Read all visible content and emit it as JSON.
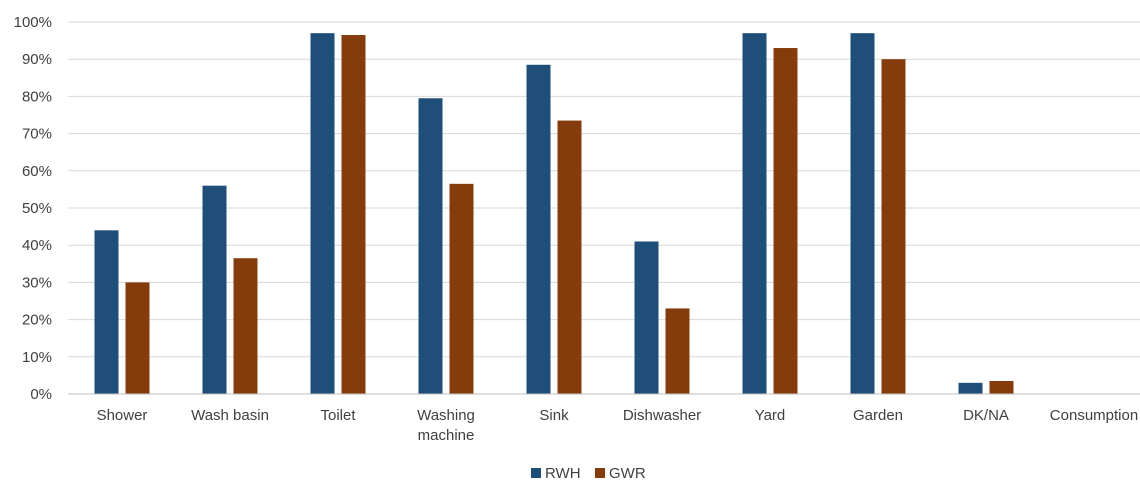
{
  "chart_data": {
    "type": "bar",
    "categories": [
      "Shower",
      "Wash basin",
      "Toilet",
      "Washing machine",
      "Sink",
      "Dishwasher",
      "Yard",
      "Garden",
      "DK/NA",
      "Consumption"
    ],
    "category_lines": [
      [
        "Shower"
      ],
      [
        "Wash basin"
      ],
      [
        "Toilet"
      ],
      [
        "Washing",
        "machine"
      ],
      [
        "Sink"
      ],
      [
        "Dishwasher"
      ],
      [
        "Yard"
      ],
      [
        "Garden"
      ],
      [
        "DK/NA"
      ],
      [
        "Consumption"
      ]
    ],
    "series": [
      {
        "name": "RWH",
        "color": "#1f4e79",
        "values": [
          44,
          56,
          97,
          79.5,
          88.5,
          41,
          97,
          97,
          3,
          0
        ]
      },
      {
        "name": "GWR",
        "color": "#843c0c",
        "values": [
          30,
          36.5,
          96.5,
          56.5,
          73.5,
          23,
          93,
          90,
          3.5,
          0
        ]
      }
    ],
    "ylim": [
      0,
      100
    ],
    "yticks": [
      "0%",
      "10%",
      "20%",
      "30%",
      "40%",
      "50%",
      "60%",
      "70%",
      "80%",
      "90%",
      "100%"
    ],
    "grid": true,
    "legend_position": "bottom"
  }
}
